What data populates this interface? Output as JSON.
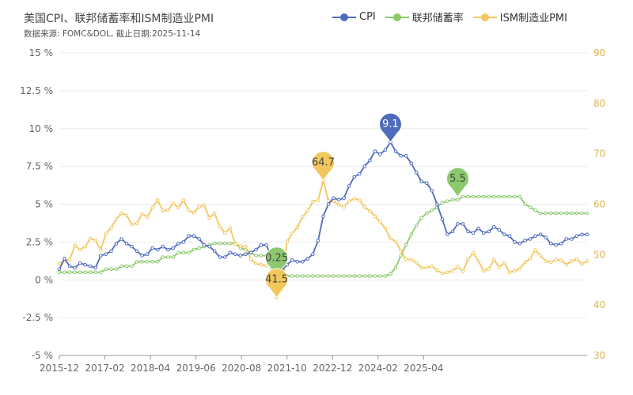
{
  "chart_data": {
    "type": "line",
    "title": "美国CPI、联邦储蓄率和ISM制造业PMI",
    "subtitle": "数据来源: FOMC&DOL, 截止日期:2025-11-14",
    "x_ticks": [
      "2015-12",
      "2017-02",
      "2018-04",
      "2019-06",
      "2020-08",
      "2021-10",
      "2022-12",
      "2024-02",
      "2025-04"
    ],
    "y_left": {
      "ticks": [
        "15 %",
        "12.5 %",
        "10 %",
        "7.5 %",
        "5 %",
        "2.5 %",
        "0 %",
        "-2.5 %",
        "-5 %"
      ],
      "range": [
        -5,
        15
      ]
    },
    "y_right": {
      "ticks": [
        "90",
        "80",
        "70",
        "60",
        "50",
        "40",
        "30"
      ],
      "range": [
        30,
        90
      ]
    },
    "colors": {
      "cpi": "#4f6bbd",
      "rate": "#8cc96d",
      "pmi": "#f2c75c"
    },
    "series": [
      {
        "key": "cpi",
        "name": "CPI",
        "axis": "left",
        "points": [
          [
            0,
            0.7
          ],
          [
            2,
            1.4
          ],
          [
            4,
            0.9
          ],
          [
            6,
            0.8
          ],
          [
            8,
            1.1
          ],
          [
            10,
            1.0
          ],
          [
            12,
            0.9
          ],
          [
            14,
            0.8
          ],
          [
            16,
            1.6
          ],
          [
            18,
            1.7
          ],
          [
            20,
            1.9
          ],
          [
            22,
            2.4
          ],
          [
            24,
            2.7
          ],
          [
            26,
            2.4
          ],
          [
            28,
            2.2
          ],
          [
            30,
            1.9
          ],
          [
            32,
            1.6
          ],
          [
            34,
            1.7
          ],
          [
            36,
            2.1
          ],
          [
            38,
            2.0
          ],
          [
            40,
            2.2
          ],
          [
            42,
            2.0
          ],
          [
            44,
            2.1
          ],
          [
            46,
            2.4
          ],
          [
            48,
            2.5
          ],
          [
            50,
            2.9
          ],
          [
            52,
            2.9
          ],
          [
            54,
            2.7
          ],
          [
            56,
            2.3
          ],
          [
            58,
            2.2
          ],
          [
            60,
            1.9
          ],
          [
            62,
            1.5
          ],
          [
            64,
            1.5
          ],
          [
            66,
            1.8
          ],
          [
            68,
            1.7
          ],
          [
            70,
            1.6
          ],
          [
            72,
            1.7
          ],
          [
            74,
            1.8
          ],
          [
            76,
            2.0
          ],
          [
            78,
            2.3
          ],
          [
            80,
            2.3
          ],
          [
            82,
            1.5
          ],
          [
            84,
            0.3
          ],
          [
            86,
            0.6
          ],
          [
            88,
            1.0
          ],
          [
            90,
            1.3
          ],
          [
            92,
            1.2
          ],
          [
            94,
            1.2
          ],
          [
            96,
            1.4
          ],
          [
            98,
            1.7
          ],
          [
            100,
            2.6
          ],
          [
            102,
            4.2
          ],
          [
            104,
            5.0
          ],
          [
            106,
            5.4
          ],
          [
            108,
            5.3
          ],
          [
            110,
            5.4
          ],
          [
            112,
            6.2
          ],
          [
            114,
            6.8
          ],
          [
            116,
            7.0
          ],
          [
            118,
            7.5
          ],
          [
            120,
            7.9
          ],
          [
            122,
            8.5
          ],
          [
            124,
            8.3
          ],
          [
            126,
            8.6
          ],
          [
            128,
            9.1
          ],
          [
            130,
            8.5
          ],
          [
            132,
            8.2
          ],
          [
            134,
            8.2
          ],
          [
            136,
            7.7
          ],
          [
            138,
            7.1
          ],
          [
            140,
            6.5
          ],
          [
            142,
            6.4
          ],
          [
            144,
            5.9
          ],
          [
            146,
            5.0
          ],
          [
            148,
            4.0
          ],
          [
            150,
            3.0
          ],
          [
            152,
            3.2
          ],
          [
            154,
            3.7
          ],
          [
            156,
            3.7
          ],
          [
            158,
            3.2
          ],
          [
            160,
            3.1
          ],
          [
            162,
            3.4
          ],
          [
            164,
            3.1
          ],
          [
            166,
            3.2
          ],
          [
            168,
            3.5
          ],
          [
            170,
            3.3
          ],
          [
            172,
            3.0
          ],
          [
            174,
            2.9
          ],
          [
            176,
            2.5
          ],
          [
            178,
            2.4
          ],
          [
            180,
            2.6
          ],
          [
            182,
            2.7
          ],
          [
            184,
            2.9
          ],
          [
            186,
            3.0
          ],
          [
            188,
            2.8
          ],
          [
            190,
            2.4
          ],
          [
            192,
            2.3
          ],
          [
            194,
            2.4
          ],
          [
            196,
            2.7
          ],
          [
            198,
            2.7
          ],
          [
            200,
            2.9
          ],
          [
            202,
            3.0
          ],
          [
            204,
            3.0
          ]
        ]
      },
      {
        "key": "rate",
        "name": "联邦储蓄率",
        "axis": "left",
        "points": [
          [
            0,
            0.5
          ],
          [
            16,
            0.5
          ],
          [
            18,
            0.7
          ],
          [
            22,
            0.7
          ],
          [
            24,
            0.9
          ],
          [
            28,
            0.9
          ],
          [
            30,
            1.2
          ],
          [
            38,
            1.2
          ],
          [
            40,
            1.5
          ],
          [
            44,
            1.5
          ],
          [
            46,
            1.8
          ],
          [
            50,
            1.8
          ],
          [
            52,
            2.0
          ],
          [
            54,
            2.1
          ],
          [
            56,
            2.2
          ],
          [
            58,
            2.3
          ],
          [
            60,
            2.4
          ],
          [
            68,
            2.4
          ],
          [
            70,
            2.1
          ],
          [
            72,
            2.0
          ],
          [
            74,
            1.8
          ],
          [
            76,
            1.6
          ],
          [
            80,
            1.6
          ],
          [
            82,
            0.65
          ],
          [
            84,
            0.25
          ],
          [
            126,
            0.25
          ],
          [
            128,
            0.4
          ],
          [
            130,
            0.8
          ],
          [
            132,
            1.6
          ],
          [
            134,
            2.3
          ],
          [
            136,
            3.0
          ],
          [
            138,
            3.6
          ],
          [
            140,
            4.1
          ],
          [
            142,
            4.4
          ],
          [
            144,
            4.6
          ],
          [
            146,
            4.8
          ],
          [
            148,
            5.1
          ],
          [
            152,
            5.3
          ],
          [
            154,
            5.3
          ],
          [
            156,
            5.5
          ],
          [
            178,
            5.5
          ],
          [
            180,
            5.0
          ],
          [
            182,
            4.8
          ],
          [
            184,
            4.6
          ],
          [
            186,
            4.4
          ],
          [
            204,
            4.4
          ]
        ]
      },
      {
        "key": "pmi",
        "name": "ISM制造业PMI",
        "axis": "right",
        "points": [
          [
            0,
            48.2
          ],
          [
            2,
            48.8
          ],
          [
            4,
            49.0
          ],
          [
            6,
            51.8
          ],
          [
            8,
            51.0
          ],
          [
            10,
            51.6
          ],
          [
            12,
            53.2
          ],
          [
            14,
            52.8
          ],
          [
            16,
            51.0
          ],
          [
            18,
            54.2
          ],
          [
            20,
            55.3
          ],
          [
            22,
            57.0
          ],
          [
            24,
            58.2
          ],
          [
            26,
            57.8
          ],
          [
            28,
            56.0
          ],
          [
            30,
            56.2
          ],
          [
            32,
            58.1
          ],
          [
            34,
            57.5
          ],
          [
            36,
            59.3
          ],
          [
            38,
            60.8
          ],
          [
            40,
            58.7
          ],
          [
            42,
            58.8
          ],
          [
            44,
            60.2
          ],
          [
            46,
            59.3
          ],
          [
            48,
            60.8
          ],
          [
            50,
            58.8
          ],
          [
            52,
            58.3
          ],
          [
            54,
            59.5
          ],
          [
            56,
            59.8
          ],
          [
            58,
            57.3
          ],
          [
            60,
            58.2
          ],
          [
            62,
            55.6
          ],
          [
            64,
            54.3
          ],
          [
            66,
            55.3
          ],
          [
            68,
            52.1
          ],
          [
            70,
            51.7
          ],
          [
            72,
            51.6
          ],
          [
            74,
            49.1
          ],
          [
            76,
            48.2
          ],
          [
            78,
            48.0
          ],
          [
            80,
            47.8
          ],
          [
            82,
            49.1
          ],
          [
            84,
            41.5
          ],
          [
            86,
            43.1
          ],
          [
            88,
            52.6
          ],
          [
            90,
            54.2
          ],
          [
            92,
            55.4
          ],
          [
            94,
            57.5
          ],
          [
            96,
            58.7
          ],
          [
            98,
            60.5
          ],
          [
            100,
            60.8
          ],
          [
            102,
            64.7
          ],
          [
            104,
            60.7
          ],
          [
            106,
            60.6
          ],
          [
            108,
            59.9
          ],
          [
            110,
            59.5
          ],
          [
            112,
            60.6
          ],
          [
            114,
            61.1
          ],
          [
            116,
            60.8
          ],
          [
            118,
            59.5
          ],
          [
            120,
            58.6
          ],
          [
            122,
            57.6
          ],
          [
            124,
            56.5
          ],
          [
            126,
            55.2
          ],
          [
            128,
            53.2
          ],
          [
            130,
            52.6
          ],
          [
            132,
            50.8
          ],
          [
            134,
            49.1
          ],
          [
            136,
            49.0
          ],
          [
            138,
            48.4
          ],
          [
            140,
            47.4
          ],
          [
            142,
            47.4
          ],
          [
            144,
            47.7
          ],
          [
            146,
            46.9
          ],
          [
            148,
            46.3
          ],
          [
            150,
            46.5
          ],
          [
            152,
            46.8
          ],
          [
            154,
            47.6
          ],
          [
            156,
            46.7
          ],
          [
            158,
            49.1
          ],
          [
            160,
            50.3
          ],
          [
            162,
            48.7
          ],
          [
            164,
            46.8
          ],
          [
            166,
            47.2
          ],
          [
            168,
            49.0
          ],
          [
            170,
            47.5
          ],
          [
            172,
            48.4
          ],
          [
            174,
            46.5
          ],
          [
            176,
            46.8
          ],
          [
            178,
            47.2
          ],
          [
            180,
            48.5
          ],
          [
            182,
            49.2
          ],
          [
            184,
            50.9
          ],
          [
            186,
            49.8
          ],
          [
            188,
            48.7
          ],
          [
            190,
            48.5
          ],
          [
            192,
            49.0
          ],
          [
            194,
            48.9
          ],
          [
            196,
            48.0
          ],
          [
            198,
            48.7
          ],
          [
            200,
            49.1
          ],
          [
            202,
            48.2
          ],
          [
            204,
            48.7
          ]
        ]
      }
    ],
    "annotations": [
      {
        "series": "cpi",
        "x": 128,
        "value": "9.1"
      },
      {
        "series": "pmi",
        "x": 102,
        "value": "64.7"
      },
      {
        "series": "rate",
        "x": 154,
        "value": "5.5"
      },
      {
        "series": "rate",
        "x": 84,
        "value": "0.25"
      },
      {
        "series": "pmi",
        "x": 84,
        "value": "41.5"
      }
    ]
  }
}
